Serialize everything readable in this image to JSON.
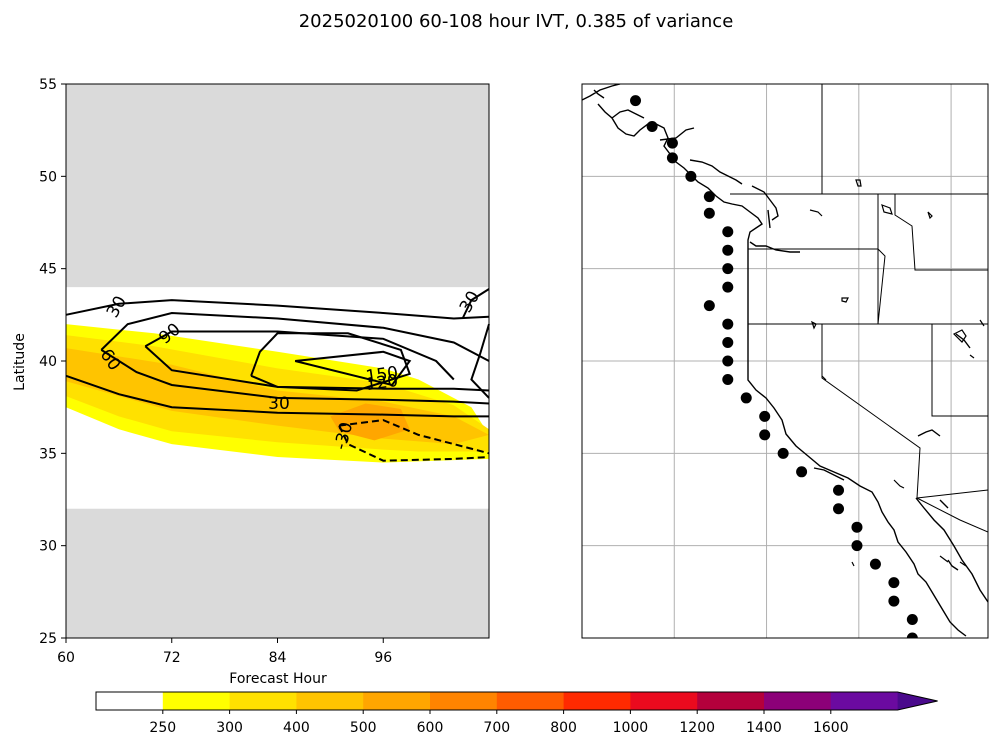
{
  "title": "2025020100 60-108 hour IVT, 0.385 of variance",
  "colors": {
    "missing_band": "#dadada",
    "contour_line": "#000000",
    "gridline": "#b0b0b0",
    "station_dot": "#000000"
  },
  "chart_data": [
    {
      "type": "heatmap",
      "subtype": "filled-contour with line contours",
      "xlabel": "Forecast Hour",
      "ylabel": "Latitude",
      "xlim": [
        60,
        108
      ],
      "ylim": [
        25,
        55
      ],
      "xticks": [
        "60",
        "72",
        "84",
        "96"
      ],
      "yticks": [
        "25",
        "30",
        "35",
        "40",
        "45",
        "50",
        "55"
      ],
      "no_data_regions": [
        {
          "lat_from": 44,
          "lat_to": 55
        },
        {
          "lat_from": 25,
          "lat_to": 32
        }
      ],
      "filled_levels": [
        {
          "level": "250",
          "color": "#ffff00",
          "polygon": [
            [
              60,
              42
            ],
            [
              70,
              41.5
            ],
            [
              84,
              40.5
            ],
            [
              96,
              39.6
            ],
            [
              100,
              39
            ],
            [
              106,
              37.5
            ],
            [
              108,
              36
            ],
            [
              108,
              34.7
            ],
            [
              96,
              34.5
            ],
            [
              84,
              34.8
            ],
            [
              72,
              35.5
            ],
            [
              66,
              36.3
            ],
            [
              60,
              37.5
            ]
          ]
        },
        {
          "level": "300",
          "color": "#ffe100",
          "polygon": [
            [
              60,
              41.4
            ],
            [
              70,
              40.8
            ],
            [
              84,
              39.6
            ],
            [
              96,
              38.8
            ],
            [
              104,
              37.6
            ],
            [
              108,
              36.3
            ],
            [
              108,
              35.1
            ],
            [
              100,
              35.1
            ],
            [
              96,
              35.2
            ],
            [
              84,
              35.6
            ],
            [
              72,
              36.2
            ],
            [
              66,
              37
            ],
            [
              60,
              38.1
            ]
          ]
        },
        {
          "level": "400",
          "color": "#ffc400",
          "polygon": [
            [
              60,
              40.7
            ],
            [
              72,
              39.8
            ],
            [
              84,
              38.4
            ],
            [
              96,
              37.8
            ],
            [
              104,
              37
            ],
            [
              108,
              36
            ],
            [
              104,
              35.5
            ],
            [
              96,
              35.8
            ],
            [
              84,
              36.5
            ],
            [
              72,
              37.3
            ],
            [
              60,
              38.9
            ]
          ]
        },
        {
          "level": "500",
          "color": "#ffa600",
          "polygon": [
            [
              90,
              37
            ],
            [
              94,
              37.7
            ],
            [
              98,
              37.4
            ],
            [
              99,
              36.3
            ],
            [
              95,
              35.7
            ],
            [
              91,
              36.2
            ]
          ]
        }
      ],
      "contour_labels": [
        "30",
        "30",
        "60",
        "90",
        "120",
        "150",
        "30",
        "-30"
      ],
      "contours": [
        {
          "level": "30",
          "style": "solid",
          "points": [
            [
              60,
              42.5
            ],
            [
              66,
              43.1
            ],
            [
              72,
              43.3
            ],
            [
              84,
              43
            ],
            [
              96,
              42.6
            ],
            [
              104,
              42.3
            ],
            [
              108,
              42.4
            ]
          ]
        },
        {
          "level": "30",
          "style": "solid",
          "points": [
            [
              60,
              39.2
            ],
            [
              66,
              38.2
            ],
            [
              72,
              37.5
            ],
            [
              84,
              37.2
            ],
            [
              96,
              37.1
            ],
            [
              104,
              37
            ],
            [
              108,
              37
            ]
          ]
        },
        {
          "level": "30",
          "style": "solid",
          "points": [
            [
              108,
              43.9
            ],
            [
              106,
              43.3
            ],
            [
              105,
              42.3
            ]
          ]
        },
        {
          "level": "30",
          "style": "solid",
          "points": [
            [
              108,
              42
            ],
            [
              107,
              40.4
            ],
            [
              106,
              39
            ],
            [
              108,
              38
            ]
          ]
        },
        {
          "level": "60",
          "style": "solid",
          "points": [
            [
              64,
              40.6
            ],
            [
              67,
              42
            ],
            [
              72,
              42.6
            ],
            [
              84,
              42.3
            ],
            [
              96,
              41.8
            ],
            [
              104,
              41
            ],
            [
              108,
              40
            ]
          ]
        },
        {
          "level": "60",
          "style": "solid",
          "points": [
            [
              64,
              40.6
            ],
            [
              68,
              39.4
            ],
            [
              72,
              38.7
            ],
            [
              84,
              38
            ],
            [
              96,
              37.9
            ],
            [
              104,
              37.8
            ],
            [
              108,
              37.7
            ]
          ]
        },
        {
          "level": "90",
          "style": "solid",
          "points": [
            [
              69,
              40.8
            ],
            [
              72,
              41.6
            ],
            [
              84,
              41.6
            ],
            [
              96,
              41.2
            ],
            [
              102,
              40
            ],
            [
              104,
              39
            ]
          ]
        },
        {
          "level": "90",
          "style": "solid",
          "points": [
            [
              69,
              40.8
            ],
            [
              72,
              39.5
            ],
            [
              84,
              38.6
            ],
            [
              96,
              38.5
            ],
            [
              104,
              38.5
            ],
            [
              108,
              38.4
            ]
          ]
        },
        {
          "level": "120",
          "style": "solid",
          "points": [
            [
              81,
              39.2
            ],
            [
              82,
              40.5
            ],
            [
              84,
              41.5
            ],
            [
              92,
              41.5
            ],
            [
              98,
              40.6
            ],
            [
              99,
              39.3
            ],
            [
              93,
              38.4
            ],
            [
              84,
              38.6
            ],
            [
              81,
              39.2
            ]
          ]
        },
        {
          "level": "150",
          "style": "solid",
          "points": [
            [
              86,
              40
            ],
            [
              96,
              40.5
            ],
            [
              99,
              40
            ],
            [
              97,
              38.7
            ],
            [
              86,
              40
            ]
          ]
        },
        {
          "level": "-30",
          "style": "dashed",
          "points": [
            [
              91,
              36.5
            ],
            [
              96,
              36.8
            ],
            [
              100,
              36
            ],
            [
              104,
              35.5
            ],
            [
              108,
              35
            ]
          ]
        },
        {
          "level": "-30",
          "style": "dashed",
          "points": [
            [
              91,
              36.5
            ],
            [
              92,
              35.5
            ],
            [
              96,
              34.6
            ],
            [
              104,
              34.7
            ],
            [
              108,
              34.8
            ]
          ]
        }
      ]
    },
    {
      "type": "scatter",
      "subtype": "map of US West Coast stations",
      "grid": true,
      "lon_range": [
        -135,
        -113
      ],
      "lat_range": [
        25,
        55
      ],
      "points": [
        [
          -132.1,
          54.1
        ],
        [
          -131.2,
          52.7
        ],
        [
          -130.1,
          51.8
        ],
        [
          -130.1,
          51
        ],
        [
          -129.1,
          50
        ],
        [
          -128.1,
          48.9
        ],
        [
          -128.1,
          48.0
        ],
        [
          -127.1,
          47.0
        ],
        [
          -127.1,
          46.0
        ],
        [
          -127.1,
          45.0
        ],
        [
          -127.1,
          44.0
        ],
        [
          -128.1,
          43.0
        ],
        [
          -127.1,
          42.0
        ],
        [
          -127.1,
          41.0
        ],
        [
          -127.1,
          40.0
        ],
        [
          -127.1,
          39.0
        ],
        [
          -126.1,
          38.0
        ],
        [
          -125.1,
          37.0
        ],
        [
          -125.1,
          36.0
        ],
        [
          -124.1,
          35.0
        ],
        [
          -123.1,
          34.0
        ],
        [
          -121.1,
          33.0
        ],
        [
          -121.1,
          32.0
        ],
        [
          -120.1,
          31.0
        ],
        [
          -120.1,
          30.0
        ],
        [
          -119.1,
          29.0
        ],
        [
          -118.1,
          28.0
        ],
        [
          -118.1,
          27.0
        ],
        [
          -117.1,
          26.0
        ],
        [
          -117.1,
          25.0
        ]
      ]
    }
  ],
  "colorbar": {
    "extend": "max",
    "levels": [
      "250",
      "300",
      "400",
      "500",
      "600",
      "700",
      "800",
      "1000",
      "1200",
      "1400",
      "1600"
    ],
    "colors": [
      "#ffffff",
      "#ffff00",
      "#ffe100",
      "#ffc400",
      "#ffa600",
      "#ff8400",
      "#ff5c00",
      "#ff2a00",
      "#eb0a1e",
      "#b4003c",
      "#8c0078",
      "#6b0aa0",
      "#4a0a8c"
    ]
  }
}
